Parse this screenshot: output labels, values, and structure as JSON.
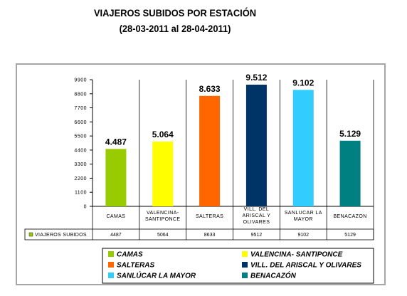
{
  "title_line1": "VIAJEROS SUBIDOS POR ESTACIÓN",
  "title_line2": "(28-03-2011 al 28-04-2011)",
  "chart_data": {
    "type": "bar",
    "title": "VIAJEROS SUBIDOS POR ESTACIÓN (28-03-2011 al 28-04-2011)",
    "categories": [
      [
        "CAMAS"
      ],
      [
        "VALENCINA-",
        "SANTIPONCE"
      ],
      [
        "SALTERAS"
      ],
      [
        "VILL. DEL",
        "ARISCAL Y",
        "OLIVARES"
      ],
      [
        "SANLUCAR LA",
        "MAYOR"
      ],
      [
        "BENACAZON"
      ]
    ],
    "values": [
      4487,
      5064,
      8633,
      9512,
      9102,
      5129
    ],
    "value_labels": [
      "4.487",
      "5.064",
      "8.633",
      "9.512",
      "9.102",
      "5.129"
    ],
    "colors": [
      "#99cc00",
      "#ffff00",
      "#ff6600",
      "#003366",
      "#33ccff",
      "#008080"
    ],
    "yticks": [
      0,
      1100,
      2200,
      3300,
      4400,
      5500,
      6600,
      7700,
      8800,
      9900
    ],
    "ylim": [
      0,
      9900
    ],
    "grid": false,
    "table": {
      "row_label": "VIAJEROS SUBIDOS",
      "cells": [
        "4487",
        "5064",
        "8633",
        "9512",
        "9102",
        "5129"
      ]
    },
    "legend": {
      "placement": "bottom",
      "entries": [
        "CAMAS",
        "VALENCINA- SANTIPONCE",
        "SALTERAS",
        "VILL. DEL ARISCAL Y OLIVARES",
        "SANLÚCAR LA MAYOR",
        "BENACAZÓN"
      ]
    }
  }
}
